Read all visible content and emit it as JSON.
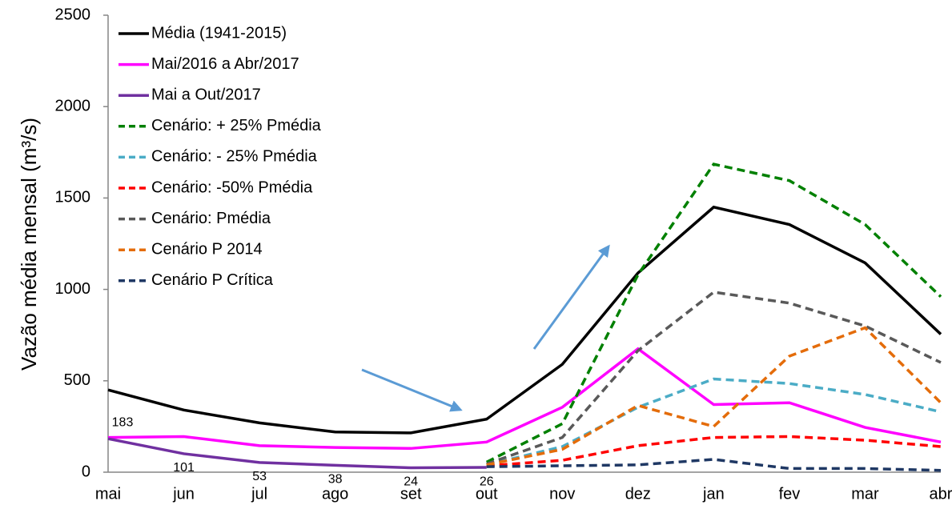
{
  "chart_data": {
    "type": "line",
    "y_label": "Vazão média mensal (m³/s)",
    "categories": [
      "mai",
      "jun",
      "jul",
      "ago",
      "set",
      "out",
      "nov",
      "dez",
      "jan",
      "fev",
      "mar",
      "abr"
    ],
    "ylim": [
      0,
      2500
    ],
    "yticks": [
      0,
      500,
      1000,
      1500,
      2000,
      2500
    ],
    "legend": "top-left",
    "series": [
      {
        "name": "Média (1941-2015)",
        "color": "#000000",
        "dash": false,
        "values": [
          450,
          340,
          270,
          220,
          215,
          290,
          590,
          1090,
          1450,
          1355,
          1145,
          755
        ]
      },
      {
        "name": "Mai/2016 a Abr/2017",
        "color": "#ff00ff",
        "dash": false,
        "values": [
          190,
          195,
          145,
          135,
          130,
          165,
          355,
          675,
          370,
          380,
          245,
          165
        ]
      },
      {
        "name": "Mai a Out/2017",
        "color": "#7030a0",
        "dash": false,
        "data_labels": true,
        "values": [
          183,
          101,
          53,
          38,
          24,
          26,
          null,
          null,
          null,
          null,
          null,
          null
        ]
      },
      {
        "name": "Cenário: + 25% Pmédia",
        "color": "#008000",
        "dash": true,
        "values": [
          null,
          null,
          null,
          null,
          null,
          55,
          265,
          1080,
          1685,
          1595,
          1355,
          960
        ]
      },
      {
        "name": "Cenário: - 25% Pmédia",
        "color": "#4bacc6",
        "dash": true,
        "values": [
          null,
          null,
          null,
          null,
          null,
          40,
          140,
          355,
          510,
          485,
          425,
          330
        ]
      },
      {
        "name": "Cenário: -50% Pmédia",
        "color": "#ff0000",
        "dash": true,
        "values": [
          null,
          null,
          null,
          null,
          null,
          35,
          65,
          145,
          190,
          195,
          175,
          140
        ]
      },
      {
        "name": "Cenário: Pmédia",
        "color": "#595959",
        "dash": true,
        "values": [
          null,
          null,
          null,
          null,
          null,
          45,
          190,
          665,
          985,
          925,
          800,
          600
        ]
      },
      {
        "name": "Cenário P 2014",
        "color": "#e46c0a",
        "dash": true,
        "values": [
          null,
          null,
          null,
          null,
          null,
          40,
          125,
          365,
          250,
          635,
          790,
          380
        ]
      },
      {
        "name": "Cenário P Crítica",
        "color": "#1f3864",
        "dash": true,
        "values": [
          null,
          null,
          null,
          null,
          null,
          30,
          35,
          40,
          70,
          20,
          20,
          10
        ]
      }
    ]
  }
}
